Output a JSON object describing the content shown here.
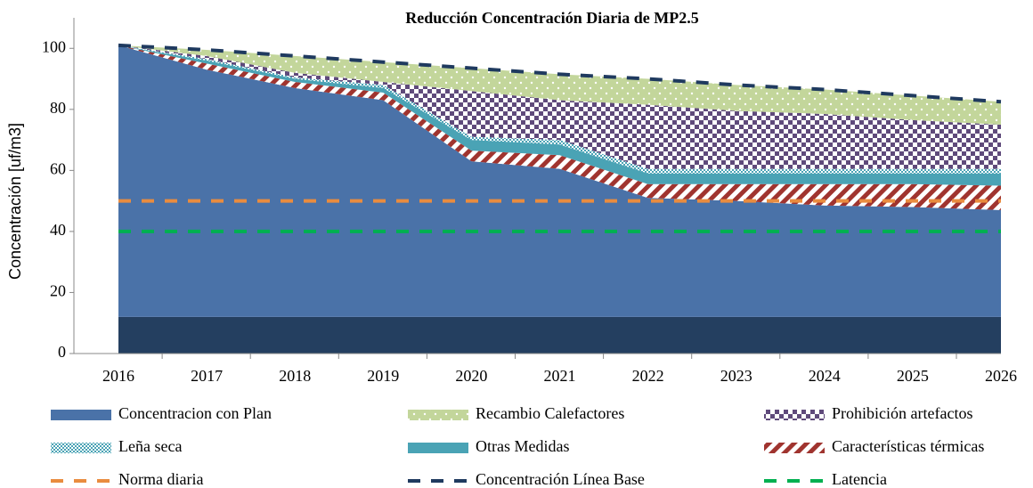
{
  "chart_data": {
    "type": "stacked_area",
    "title": "Reducción Concentración Diaria de MP2.5",
    "ylabel": "Concentración [uf/m3]",
    "categories": [
      "2016",
      "2017",
      "2018",
      "2019",
      "2020",
      "2021",
      "2022",
      "2023",
      "2024",
      "2025",
      "2026"
    ],
    "ylim": [
      0,
      110
    ],
    "yticks": [
      0,
      20,
      40,
      60,
      80,
      100
    ],
    "series": [
      {
        "color": "#243f60",
        "values": [
          12,
          12,
          12,
          12,
          12,
          12,
          12,
          12,
          12,
          12,
          12
        ]
      },
      {
        "name": "Concentracion con Plan",
        "color": "#4a72a8",
        "values": [
          89,
          81,
          75,
          71,
          51,
          48.5,
          39,
          38,
          36.5,
          36,
          35
        ]
      },
      {
        "name": "Características térmicas",
        "color": "#a0342f",
        "pattern": "diagonal",
        "values": [
          0,
          2,
          2,
          2.5,
          3.5,
          4.5,
          4.5,
          5.5,
          7,
          7.5,
          8
        ]
      },
      {
        "name": "Otras Medidas",
        "color": "#4aa3b5",
        "values": [
          0,
          1,
          1,
          1.5,
          3.5,
          3.5,
          3.5,
          3.5,
          3.5,
          3.5,
          4
        ]
      },
      {
        "name": "Leña seca",
        "color": "#4aa3b5",
        "pattern": "fine-checker",
        "values": [
          0,
          0.5,
          0.5,
          1,
          1,
          1.5,
          1.5,
          1.5,
          1.5,
          1.5,
          1.5
        ]
      },
      {
        "name": "Prohibición artefactos",
        "color": "#5f4a7b",
        "pattern": "checker",
        "values": [
          0,
          1,
          1.5,
          1,
          15,
          13,
          21,
          19,
          18,
          16,
          14.5
        ]
      },
      {
        "name": "Recambio Calefactores",
        "color": "#c3d69b",
        "pattern": "dots",
        "values": [
          0,
          2,
          5.5,
          6.5,
          7.5,
          8.5,
          8.5,
          8.5,
          8,
          8,
          7.5
        ]
      },
      {
        "name": "Norma diaria",
        "type": "line",
        "dashed": true,
        "color": "#e98c3f",
        "values": [
          50,
          50,
          50,
          50,
          50,
          50,
          50,
          50,
          50,
          50,
          50
        ]
      },
      {
        "name": "Concentración Línea Base",
        "type": "line",
        "dashed": true,
        "color": "#1f3a5f",
        "values": [
          101,
          99.5,
          97.5,
          95.5,
          93.5,
          91.5,
          90,
          88,
          86.5,
          84.5,
          82.5
        ]
      },
      {
        "name": "Latencia",
        "type": "line",
        "dashed": true,
        "color": "#00b050",
        "values": [
          40,
          40,
          40,
          40,
          40,
          40,
          40,
          40,
          40,
          40,
          40
        ]
      }
    ]
  }
}
